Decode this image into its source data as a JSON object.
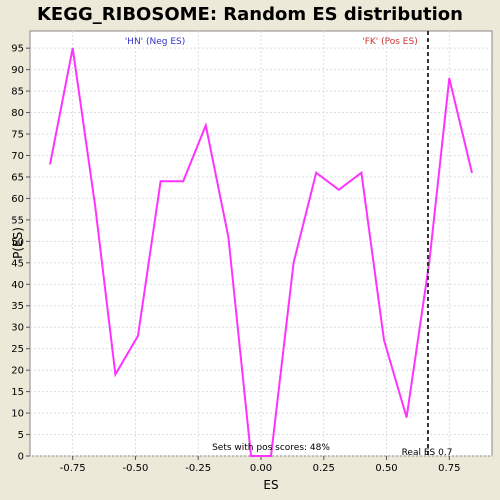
{
  "chart_data": {
    "type": "line",
    "title": "KEGG_RIBOSOME: Random ES distribution",
    "xlabel": "ES",
    "ylabel": "P(ES)",
    "xlim": [
      -0.92,
      0.92
    ],
    "ylim": [
      0,
      99
    ],
    "x_ticks": [
      -0.75,
      -0.5,
      -0.25,
      0.0,
      0.25,
      0.5,
      0.75
    ],
    "x_tick_labels": [
      "-0.75",
      "-0.50",
      "-0.25",
      "0.00",
      "0.25",
      "0.50",
      "0.75"
    ],
    "y_ticks": [
      0,
      5,
      10,
      15,
      20,
      25,
      30,
      35,
      40,
      45,
      50,
      55,
      60,
      65,
      70,
      75,
      80,
      85,
      90,
      95
    ],
    "y_tick_labels": [
      "0",
      "5",
      "10",
      "15",
      "20",
      "25",
      "30",
      "35",
      "40",
      "45",
      "50",
      "55",
      "60",
      "65",
      "70",
      "75",
      "80",
      "85",
      "90",
      "95"
    ],
    "grid": true,
    "series": [
      {
        "color": "#ff33ff",
        "x": [
          -0.84,
          -0.75,
          -0.66,
          -0.58,
          -0.49,
          -0.4,
          -0.31,
          -0.22,
          -0.13,
          -0.04,
          0.04,
          0.13,
          0.22,
          0.31,
          0.4,
          0.49,
          0.58,
          0.67,
          0.75,
          0.84
        ],
        "y": [
          68,
          95,
          58,
          19,
          28,
          64,
          64,
          77,
          51,
          0,
          0,
          45,
          66,
          62,
          66,
          27,
          9,
          45,
          88,
          66
        ]
      }
    ],
    "real_es": 0.665,
    "real_es_label": "Real ES 0.7",
    "neg_label": "'HN' (Neg ES)",
    "pos_label": "'FK' (Pos ES)",
    "sets_label": "Sets with pos scores: 48%",
    "colors": {
      "background": "#ece9d8",
      "plot_bg": "#ffffff",
      "grid": "#dddddd",
      "line": "#ff33ff",
      "neg_label": "#3333cc",
      "pos_label": "#cc3333",
      "real_es_line": "#333333"
    }
  }
}
